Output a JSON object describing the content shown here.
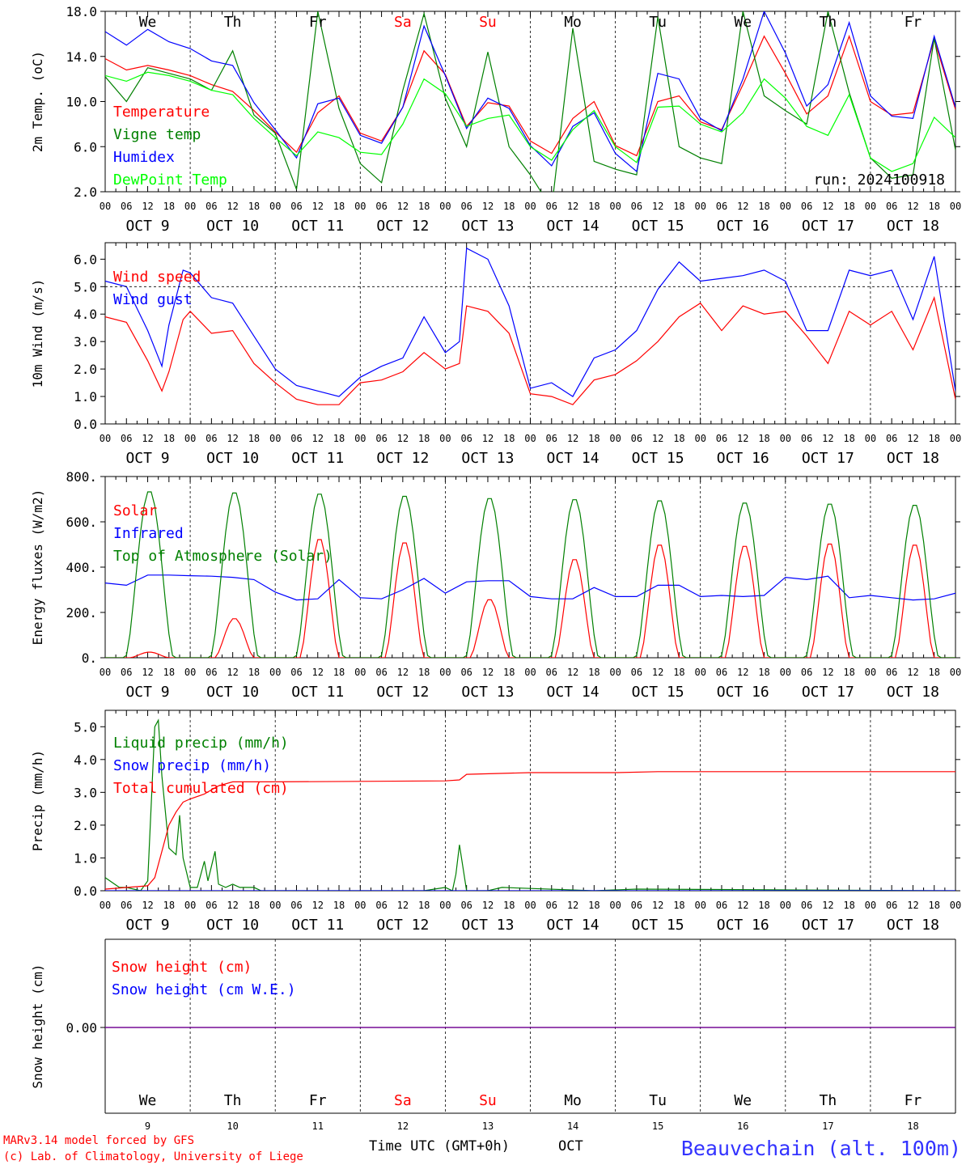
{
  "footer": {
    "model_line": "MARv3.14 model forced by GFS",
    "credit_line": "(c) Lab. of Climatology, University of Liege",
    "xlabel": "Time UTC (GMT+0h)",
    "month": "OCT",
    "station": "Beauvechain (alt. 100m)"
  },
  "days": {
    "weekdays": [
      "We",
      "Th",
      "Fr",
      "Sa",
      "Su",
      "Mo",
      "Tu",
      "We",
      "Th",
      "Fr"
    ],
    "weekend_flags": [
      false,
      false,
      false,
      true,
      true,
      false,
      false,
      false,
      false,
      false
    ],
    "dates": [
      "9",
      "10",
      "11",
      "12",
      "13",
      "14",
      "15",
      "16",
      "17",
      "18"
    ],
    "date_labels": [
      "OCT  9",
      "OCT 10",
      "OCT 11",
      "OCT 12",
      "OCT 13",
      "OCT 14",
      "OCT 15",
      "OCT 16",
      "OCT 17",
      "OCT 18"
    ],
    "hour_labels": [
      "00",
      "06",
      "12",
      "18"
    ],
    "last_hour_label": "00"
  },
  "colors": {
    "red": "#ff0000",
    "green": "#008000",
    "blue": "#0000ff",
    "light_green": "#00ff00",
    "purple": "#800080",
    "station_blue": "#3333ff"
  },
  "chart_data": [
    {
      "type": "line",
      "ylabel": "2m Temp. (oC)",
      "ylim": [
        2,
        18
      ],
      "yticks": [
        "2.0",
        "6.0",
        "10.0",
        "14.0",
        "18.0"
      ],
      "x_unit": "hours since Oct 9 00 UTC",
      "run_label": "run: 2024100918",
      "series": [
        {
          "name": "Temperature",
          "color": "#ff0000",
          "x": [
            0,
            6,
            12,
            18,
            24,
            30,
            36,
            42,
            48,
            54,
            60,
            66,
            72,
            78,
            84,
            90,
            96,
            102,
            108,
            114,
            120,
            126,
            132,
            138,
            144,
            150,
            156,
            162,
            168,
            174,
            180,
            186,
            192,
            198,
            204,
            210,
            216,
            222,
            228,
            234,
            240
          ],
          "y": [
            13.8,
            12.8,
            13.2,
            12.8,
            12.3,
            11.5,
            10.9,
            9.2,
            7.3,
            5.5,
            9.0,
            10.5,
            7.2,
            6.5,
            9.5,
            14.5,
            12.4,
            7.8,
            9.9,
            9.6,
            6.5,
            5.4,
            8.5,
            10.0,
            6.1,
            5.2,
            10.0,
            10.5,
            8.2,
            7.5,
            11.5,
            15.8,
            12.5,
            8.9,
            10.5,
            15.8,
            10.0,
            8.8,
            9.0,
            15.5,
            9.3
          ]
        },
        {
          "name": "Vigne temp",
          "color": "#008000",
          "x": [
            0,
            6,
            12,
            18,
            24,
            30,
            36,
            42,
            48,
            54,
            60,
            66,
            72,
            78,
            84,
            90,
            96,
            102,
            108,
            114,
            120,
            126,
            132,
            138,
            144,
            150,
            156,
            162,
            168,
            174,
            180,
            186,
            192,
            198,
            204,
            210,
            216,
            222,
            228,
            234,
            240
          ],
          "y": [
            12.2,
            10.0,
            13.0,
            12.5,
            12.0,
            11.0,
            14.5,
            8.8,
            7.2,
            2.2,
            18.0,
            9.4,
            4.5,
            2.8,
            11.0,
            17.8,
            10.3,
            6.0,
            14.4,
            6.0,
            3.5,
            0.5,
            16.5,
            4.7,
            4.0,
            3.5,
            17.5,
            6.0,
            5.0,
            4.5,
            18.0,
            10.5,
            9.2,
            8.0,
            18.0,
            10.8,
            5.0,
            3.2,
            3.5,
            15.6,
            5.7
          ]
        },
        {
          "name": "Humidex",
          "color": "#0000ff",
          "x": [
            0,
            6,
            12,
            18,
            24,
            30,
            36,
            42,
            48,
            54,
            60,
            66,
            72,
            78,
            84,
            90,
            96,
            102,
            108,
            114,
            120,
            126,
            132,
            138,
            144,
            150,
            156,
            162,
            168,
            174,
            180,
            186,
            192,
            198,
            204,
            210,
            216,
            222,
            228,
            234,
            240
          ],
          "y": [
            16.2,
            15.0,
            16.4,
            15.3,
            14.7,
            13.6,
            13.2,
            9.9,
            7.5,
            5.0,
            9.8,
            10.3,
            7.0,
            6.3,
            9.5,
            16.7,
            12.3,
            7.6,
            10.3,
            9.4,
            6.1,
            4.3,
            7.8,
            9.0,
            5.4,
            3.8,
            12.5,
            12.0,
            8.5,
            7.4,
            12.0,
            18.0,
            14.3,
            9.6,
            11.5,
            17.0,
            10.5,
            8.7,
            8.5,
            15.8,
            9.5
          ]
        },
        {
          "name": "DewPoint Temp",
          "color": "#00ff00",
          "x": [
            0,
            6,
            12,
            18,
            24,
            30,
            36,
            42,
            48,
            54,
            60,
            66,
            72,
            78,
            84,
            90,
            96,
            102,
            108,
            114,
            120,
            126,
            132,
            138,
            144,
            150,
            156,
            162,
            168,
            174,
            180,
            186,
            192,
            198,
            204,
            210,
            216,
            222,
            228,
            234,
            240
          ],
          "y": [
            12.3,
            11.8,
            12.6,
            12.3,
            11.8,
            11.0,
            10.6,
            8.5,
            6.8,
            5.2,
            7.3,
            6.8,
            5.5,
            5.3,
            8.0,
            12.0,
            10.7,
            7.8,
            8.5,
            8.8,
            6.0,
            4.8,
            7.5,
            9.2,
            6.0,
            4.6,
            9.5,
            9.6,
            8.0,
            7.3,
            9.0,
            12.0,
            10.3,
            7.8,
            7.0,
            10.6,
            5.0,
            3.8,
            4.5,
            8.6,
            6.8
          ]
        }
      ]
    },
    {
      "type": "line",
      "ylabel": "10m Wind (m/s)",
      "ylim": [
        0,
        6.6
      ],
      "yticks": [
        "0.0",
        "1.0",
        "2.0",
        "3.0",
        "4.0",
        "5.0",
        "6.0"
      ],
      "reference_line": 5.0,
      "x_unit": "hours since Oct 9 00 UTC",
      "series": [
        {
          "name": "Wind speed",
          "color": "#ff0000",
          "x": [
            0,
            6,
            12,
            16,
            18,
            22,
            24,
            30,
            36,
            42,
            48,
            54,
            60,
            66,
            72,
            78,
            84,
            90,
            96,
            100,
            102,
            108,
            114,
            120,
            126,
            132,
            138,
            144,
            150,
            156,
            162,
            168,
            174,
            180,
            186,
            192,
            198,
            204,
            210,
            216,
            222,
            228,
            234,
            240
          ],
          "y": [
            3.9,
            3.7,
            2.3,
            1.2,
            1.9,
            3.8,
            4.1,
            3.3,
            3.4,
            2.2,
            1.5,
            0.9,
            0.7,
            0.7,
            1.5,
            1.6,
            1.9,
            2.6,
            2.0,
            2.2,
            4.3,
            4.1,
            3.3,
            1.1,
            1.0,
            0.7,
            1.6,
            1.8,
            2.3,
            3.0,
            3.9,
            4.4,
            3.4,
            4.3,
            4.0,
            4.1,
            3.2,
            2.2,
            4.1,
            3.6,
            4.1,
            2.7,
            4.6,
            0.9
          ]
        },
        {
          "name": "Wind gust",
          "color": "#0000ff",
          "x": [
            0,
            6,
            12,
            16,
            18,
            22,
            24,
            30,
            36,
            42,
            48,
            54,
            60,
            66,
            72,
            78,
            84,
            90,
            96,
            100,
            102,
            108,
            114,
            120,
            126,
            132,
            138,
            144,
            150,
            156,
            162,
            168,
            174,
            180,
            186,
            192,
            198,
            204,
            210,
            216,
            222,
            228,
            234,
            240
          ],
          "y": [
            5.2,
            5.0,
            3.4,
            2.1,
            3.6,
            5.6,
            5.5,
            4.6,
            4.4,
            3.2,
            2.0,
            1.4,
            1.2,
            1.0,
            1.7,
            2.1,
            2.4,
            3.9,
            2.6,
            3.0,
            6.4,
            6.0,
            4.3,
            1.3,
            1.5,
            1.0,
            2.4,
            2.7,
            3.4,
            4.9,
            5.9,
            5.2,
            5.3,
            5.4,
            5.6,
            5.2,
            3.4,
            3.4,
            5.6,
            5.4,
            5.6,
            3.8,
            6.1,
            1.2
          ]
        }
      ]
    },
    {
      "type": "line",
      "ylabel": "Energy fluxes (W/m2)",
      "ylim": [
        0,
        800
      ],
      "yticks": [
        "0.",
        "200.",
        "400.",
        "600.",
        "800."
      ],
      "x_unit": "hours since Oct 9 00 UTC",
      "series": [
        {
          "name": "Solar",
          "color": "#ff0000",
          "daily_peak_hour": 12.5,
          "daily_peaks": [
            25,
            175,
            530,
            515,
            260,
            440,
            505,
            500,
            510,
            505
          ]
        },
        {
          "name": "Infrared",
          "color": "#0000ff",
          "x": [
            0,
            6,
            12,
            18,
            24,
            30,
            36,
            42,
            48,
            54,
            60,
            66,
            72,
            78,
            84,
            90,
            96,
            102,
            108,
            114,
            120,
            126,
            132,
            138,
            144,
            150,
            156,
            162,
            168,
            174,
            180,
            186,
            192,
            198,
            204,
            210,
            216,
            222,
            228,
            234,
            240
          ],
          "y": [
            330,
            320,
            365,
            365,
            362,
            360,
            355,
            345,
            290,
            255,
            260,
            345,
            265,
            260,
            300,
            350,
            285,
            335,
            340,
            340,
            270,
            260,
            260,
            310,
            270,
            270,
            320,
            320,
            270,
            275,
            270,
            275,
            355,
            345,
            360,
            265,
            275,
            265,
            255,
            260,
            285
          ]
        },
        {
          "name": "Top of Atmosphere (Solar)",
          "color": "#008000",
          "daily_peak_hour": 12.5,
          "daily_peaks": [
            740,
            735,
            730,
            720,
            710,
            705,
            700,
            690,
            685,
            680
          ]
        }
      ]
    },
    {
      "type": "line",
      "ylabel": "Precip (mm/h)",
      "ylim": [
        0,
        5.5
      ],
      "yticks": [
        "0.0",
        "1.0",
        "2.0",
        "3.0",
        "4.0",
        "5.0"
      ],
      "x_unit": "hours since Oct 9 00 UTC",
      "series": [
        {
          "name": "Liquid precip (mm/h)",
          "color": "#008000",
          "x": [
            0,
            4,
            6,
            10,
            12,
            14,
            15,
            16,
            18,
            20,
            21,
            22,
            24,
            26,
            28,
            29,
            31,
            32,
            34,
            36,
            38,
            42,
            44,
            48,
            90,
            96,
            98,
            99,
            100,
            102,
            108,
            112,
            138,
            150,
            240
          ],
          "y": [
            0.4,
            0.1,
            0.1,
            0.0,
            0.3,
            5.0,
            5.2,
            3.5,
            1.3,
            1.1,
            2.3,
            1.0,
            0.1,
            0.1,
            0.9,
            0.3,
            1.2,
            0.2,
            0.1,
            0.2,
            0.1,
            0.1,
            0.0,
            0.0,
            0.0,
            0.1,
            0.0,
            0.5,
            1.4,
            0.0,
            0.0,
            0.1,
            0.0,
            0.05,
            0.0
          ]
        },
        {
          "name": "Snow precip (mm/h)",
          "color": "#0000ff",
          "x": [
            0,
            240
          ],
          "y": [
            0.0,
            0.0
          ]
        },
        {
          "name": "Total cumulated (cm)",
          "color": "#ff0000",
          "x": [
            0,
            12,
            14,
            16,
            18,
            20,
            22,
            24,
            28,
            32,
            36,
            48,
            96,
            100,
            102,
            120,
            144,
            156,
            180,
            240
          ],
          "y": [
            0.05,
            0.15,
            0.4,
            1.2,
            2.0,
            2.4,
            2.7,
            2.8,
            2.95,
            3.2,
            3.32,
            3.32,
            3.35,
            3.38,
            3.55,
            3.6,
            3.6,
            3.63,
            3.63,
            3.63
          ]
        }
      ]
    },
    {
      "type": "line",
      "ylabel": "Snow height (cm)",
      "ytick": "0.00",
      "x_unit": "hours since Oct 9 00 UTC",
      "series": [
        {
          "name": "Snow height (cm)",
          "color": "#ff0000",
          "x": [
            0,
            240
          ],
          "y": [
            0,
            0
          ]
        },
        {
          "name": "Snow height (cm W.E.)",
          "color": "#0000ff",
          "x": [
            0,
            240
          ],
          "y": [
            0,
            0
          ]
        }
      ]
    }
  ]
}
